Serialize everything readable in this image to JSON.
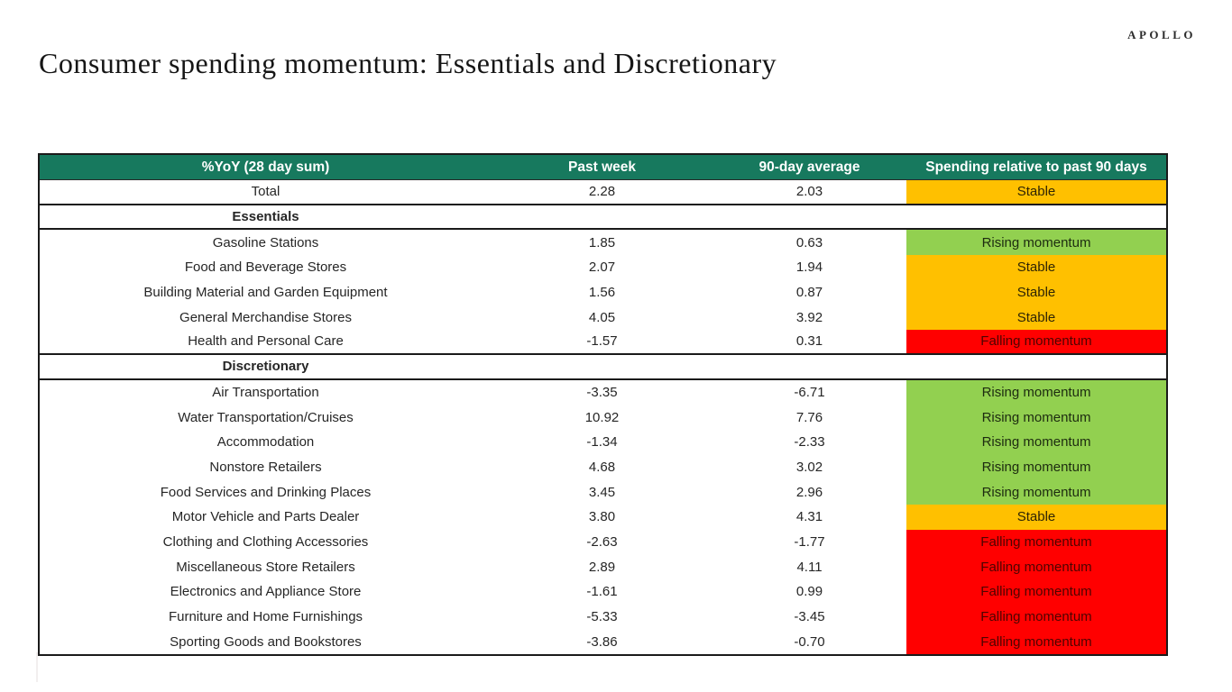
{
  "brand": "APOLLO",
  "page_title": "Consumer spending momentum: Essentials and Discretionary",
  "colors": {
    "header_bg": "#17795E",
    "rising": "#92D050",
    "stable": "#FFC000",
    "falling": "#FF0000",
    "falling_text": "#4d0400",
    "border": "#1a1a1a"
  },
  "chart_data": {
    "type": "table",
    "title": "Consumer spending momentum: Essentials and Discretionary",
    "columns": [
      "%YoY (28 day sum)",
      "Past week",
      "90-day average",
      "Spending relative to past 90 days"
    ],
    "rows": [
      {
        "type": "data",
        "label": "Total",
        "past_week": "2.28",
        "avg_90": "2.03",
        "status": "Stable",
        "status_kind": "stable",
        "section_end": true
      },
      {
        "type": "section",
        "label": "Essentials",
        "section_end": true
      },
      {
        "type": "data",
        "label": "Gasoline Stations",
        "past_week": "1.85",
        "avg_90": "0.63",
        "status": "Rising momentum",
        "status_kind": "rising"
      },
      {
        "type": "data",
        "label": "Food and Beverage Stores",
        "past_week": "2.07",
        "avg_90": "1.94",
        "status": "Stable",
        "status_kind": "stable"
      },
      {
        "type": "data",
        "label": "Building Material and Garden Equipment",
        "past_week": "1.56",
        "avg_90": "0.87",
        "status": "Stable",
        "status_kind": "stable"
      },
      {
        "type": "data",
        "label": "General Merchandise Stores",
        "past_week": "4.05",
        "avg_90": "3.92",
        "status": "Stable",
        "status_kind": "stable"
      },
      {
        "type": "data",
        "label": "Health and Personal Care",
        "past_week": "-1.57",
        "avg_90": "0.31",
        "status": "Falling momentum",
        "status_kind": "falling",
        "section_end": true
      },
      {
        "type": "section",
        "label": "Discretionary",
        "section_end": true
      },
      {
        "type": "data",
        "label": "Air Transportation",
        "past_week": "-3.35",
        "avg_90": "-6.71",
        "status": "Rising momentum",
        "status_kind": "rising"
      },
      {
        "type": "data",
        "label": "Water Transportation/Cruises",
        "past_week": "10.92",
        "avg_90": "7.76",
        "status": "Rising momentum",
        "status_kind": "rising"
      },
      {
        "type": "data",
        "label": "Accommodation",
        "past_week": "-1.34",
        "avg_90": "-2.33",
        "status": "Rising momentum",
        "status_kind": "rising"
      },
      {
        "type": "data",
        "label": "Nonstore Retailers",
        "past_week": "4.68",
        "avg_90": "3.02",
        "status": "Rising momentum",
        "status_kind": "rising"
      },
      {
        "type": "data",
        "label": "Food Services and Drinking Places",
        "past_week": "3.45",
        "avg_90": "2.96",
        "status": "Rising momentum",
        "status_kind": "rising"
      },
      {
        "type": "data",
        "label": "Motor Vehicle and Parts Dealer",
        "past_week": "3.80",
        "avg_90": "4.31",
        "status": "Stable",
        "status_kind": "stable"
      },
      {
        "type": "data",
        "label": "Clothing and Clothing Accessories",
        "past_week": "-2.63",
        "avg_90": "-1.77",
        "status": "Falling momentum",
        "status_kind": "falling"
      },
      {
        "type": "data",
        "label": "Miscellaneous Store Retailers",
        "past_week": "2.89",
        "avg_90": "4.11",
        "status": "Falling momentum",
        "status_kind": "falling"
      },
      {
        "type": "data",
        "label": "Electronics and Appliance Store",
        "past_week": "-1.61",
        "avg_90": "0.99",
        "status": "Falling momentum",
        "status_kind": "falling"
      },
      {
        "type": "data",
        "label": "Furniture and Home Furnishings",
        "past_week": "-5.33",
        "avg_90": "-3.45",
        "status": "Falling momentum",
        "status_kind": "falling"
      },
      {
        "type": "data",
        "label": "Sporting Goods and Bookstores",
        "past_week": "-3.86",
        "avg_90": "-0.70",
        "status": "Falling momentum",
        "status_kind": "falling"
      }
    ]
  }
}
